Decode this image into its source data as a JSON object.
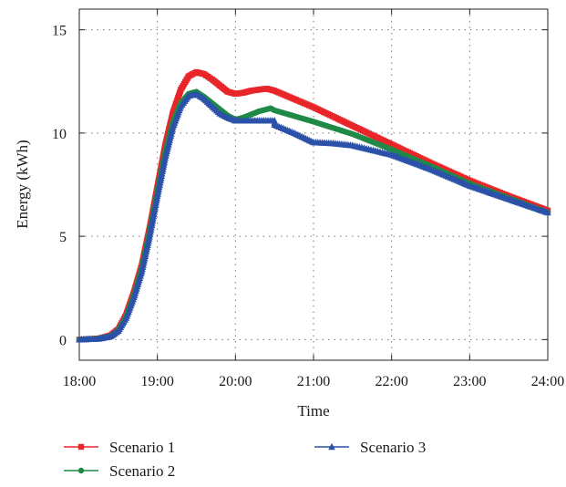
{
  "chart_data": {
    "type": "line",
    "title": "",
    "xlabel": "Time",
    "ylabel": "Energy (kWh)",
    "xlim": [
      18,
      24
    ],
    "ylim": [
      -1,
      16
    ],
    "x_ticks": [
      {
        "value": 18,
        "label": "18:00"
      },
      {
        "value": 19,
        "label": "19:00"
      },
      {
        "value": 20,
        "label": "20:00"
      },
      {
        "value": 21,
        "label": "21:00"
      },
      {
        "value": 22,
        "label": "22:00"
      },
      {
        "value": 23,
        "label": "23:00"
      },
      {
        "value": 24,
        "label": "24:00"
      }
    ],
    "y_ticks": [
      {
        "value": 0,
        "label": "0"
      },
      {
        "value": 5,
        "label": "5"
      },
      {
        "value": 10,
        "label": "10"
      },
      {
        "value": 15,
        "label": "15"
      }
    ],
    "grid": true,
    "legend_position": "bottom",
    "series": [
      {
        "name": "Scenario 1",
        "color": "#e8262a",
        "marker": "square",
        "points": [
          [
            18,
            0
          ],
          [
            18.25,
            0.05
          ],
          [
            18.4,
            0.2
          ],
          [
            18.5,
            0.5
          ],
          [
            18.6,
            1.2
          ],
          [
            18.7,
            2.3
          ],
          [
            18.8,
            3.6
          ],
          [
            18.9,
            5.4
          ],
          [
            19.0,
            7.4
          ],
          [
            19.1,
            9.4
          ],
          [
            19.2,
            11.0
          ],
          [
            19.3,
            12.1
          ],
          [
            19.4,
            12.75
          ],
          [
            19.5,
            12.95
          ],
          [
            19.6,
            12.85
          ],
          [
            19.7,
            12.6
          ],
          [
            19.8,
            12.3
          ],
          [
            19.9,
            12.0
          ],
          [
            20.0,
            11.9
          ],
          [
            20.1,
            11.95
          ],
          [
            20.2,
            12.05
          ],
          [
            20.3,
            12.1
          ],
          [
            20.4,
            12.15
          ],
          [
            20.5,
            12.05
          ],
          [
            21.0,
            11.25
          ],
          [
            21.5,
            10.35
          ],
          [
            22.0,
            9.45
          ],
          [
            22.5,
            8.55
          ],
          [
            23.0,
            7.7
          ],
          [
            23.5,
            6.95
          ],
          [
            24.0,
            6.25
          ]
        ]
      },
      {
        "name": "Scenario 2",
        "color": "#1e8a45",
        "marker": "circle",
        "points": [
          [
            18,
            0
          ],
          [
            18.25,
            0.04
          ],
          [
            18.4,
            0.17
          ],
          [
            18.5,
            0.45
          ],
          [
            18.6,
            1.1
          ],
          [
            18.7,
            2.15
          ],
          [
            18.8,
            3.45
          ],
          [
            18.9,
            5.2
          ],
          [
            19.0,
            7.15
          ],
          [
            19.1,
            9.05
          ],
          [
            19.2,
            10.55
          ],
          [
            19.3,
            11.45
          ],
          [
            19.4,
            11.9
          ],
          [
            19.5,
            12.0
          ],
          [
            19.6,
            11.75
          ],
          [
            19.7,
            11.45
          ],
          [
            19.8,
            11.15
          ],
          [
            19.9,
            10.85
          ],
          [
            20.0,
            10.65
          ],
          [
            20.1,
            10.75
          ],
          [
            20.2,
            10.9
          ],
          [
            20.3,
            11.05
          ],
          [
            20.4,
            11.15
          ],
          [
            20.45,
            11.2
          ],
          [
            20.5,
            11.1
          ],
          [
            21.0,
            10.55
          ],
          [
            21.5,
            9.95
          ],
          [
            22.0,
            9.2
          ],
          [
            22.5,
            8.4
          ],
          [
            23.0,
            7.55
          ],
          [
            23.5,
            6.85
          ],
          [
            24.0,
            6.15
          ]
        ]
      },
      {
        "name": "Scenario 3",
        "color": "#2b51a8",
        "marker": "triangle",
        "points": [
          [
            18,
            0
          ],
          [
            18.25,
            0.04
          ],
          [
            18.4,
            0.15
          ],
          [
            18.5,
            0.42
          ],
          [
            18.6,
            1.05
          ],
          [
            18.7,
            2.05
          ],
          [
            18.8,
            3.3
          ],
          [
            18.9,
            5.0
          ],
          [
            19.0,
            6.95
          ],
          [
            19.1,
            8.8
          ],
          [
            19.2,
            10.3
          ],
          [
            19.3,
            11.3
          ],
          [
            19.4,
            11.8
          ],
          [
            19.5,
            11.9
          ],
          [
            19.6,
            11.65
          ],
          [
            19.7,
            11.3
          ],
          [
            19.8,
            10.95
          ],
          [
            19.9,
            10.75
          ],
          [
            20.0,
            10.6
          ],
          [
            20.25,
            10.6
          ],
          [
            20.5,
            10.6
          ],
          [
            20.5,
            10.4
          ],
          [
            20.75,
            10.0
          ],
          [
            21.0,
            9.55
          ],
          [
            21.25,
            9.5
          ],
          [
            21.5,
            9.4
          ],
          [
            22.0,
            8.95
          ],
          [
            22.5,
            8.25
          ],
          [
            23.0,
            7.45
          ],
          [
            23.5,
            6.8
          ],
          [
            24.0,
            6.15
          ]
        ]
      }
    ]
  }
}
